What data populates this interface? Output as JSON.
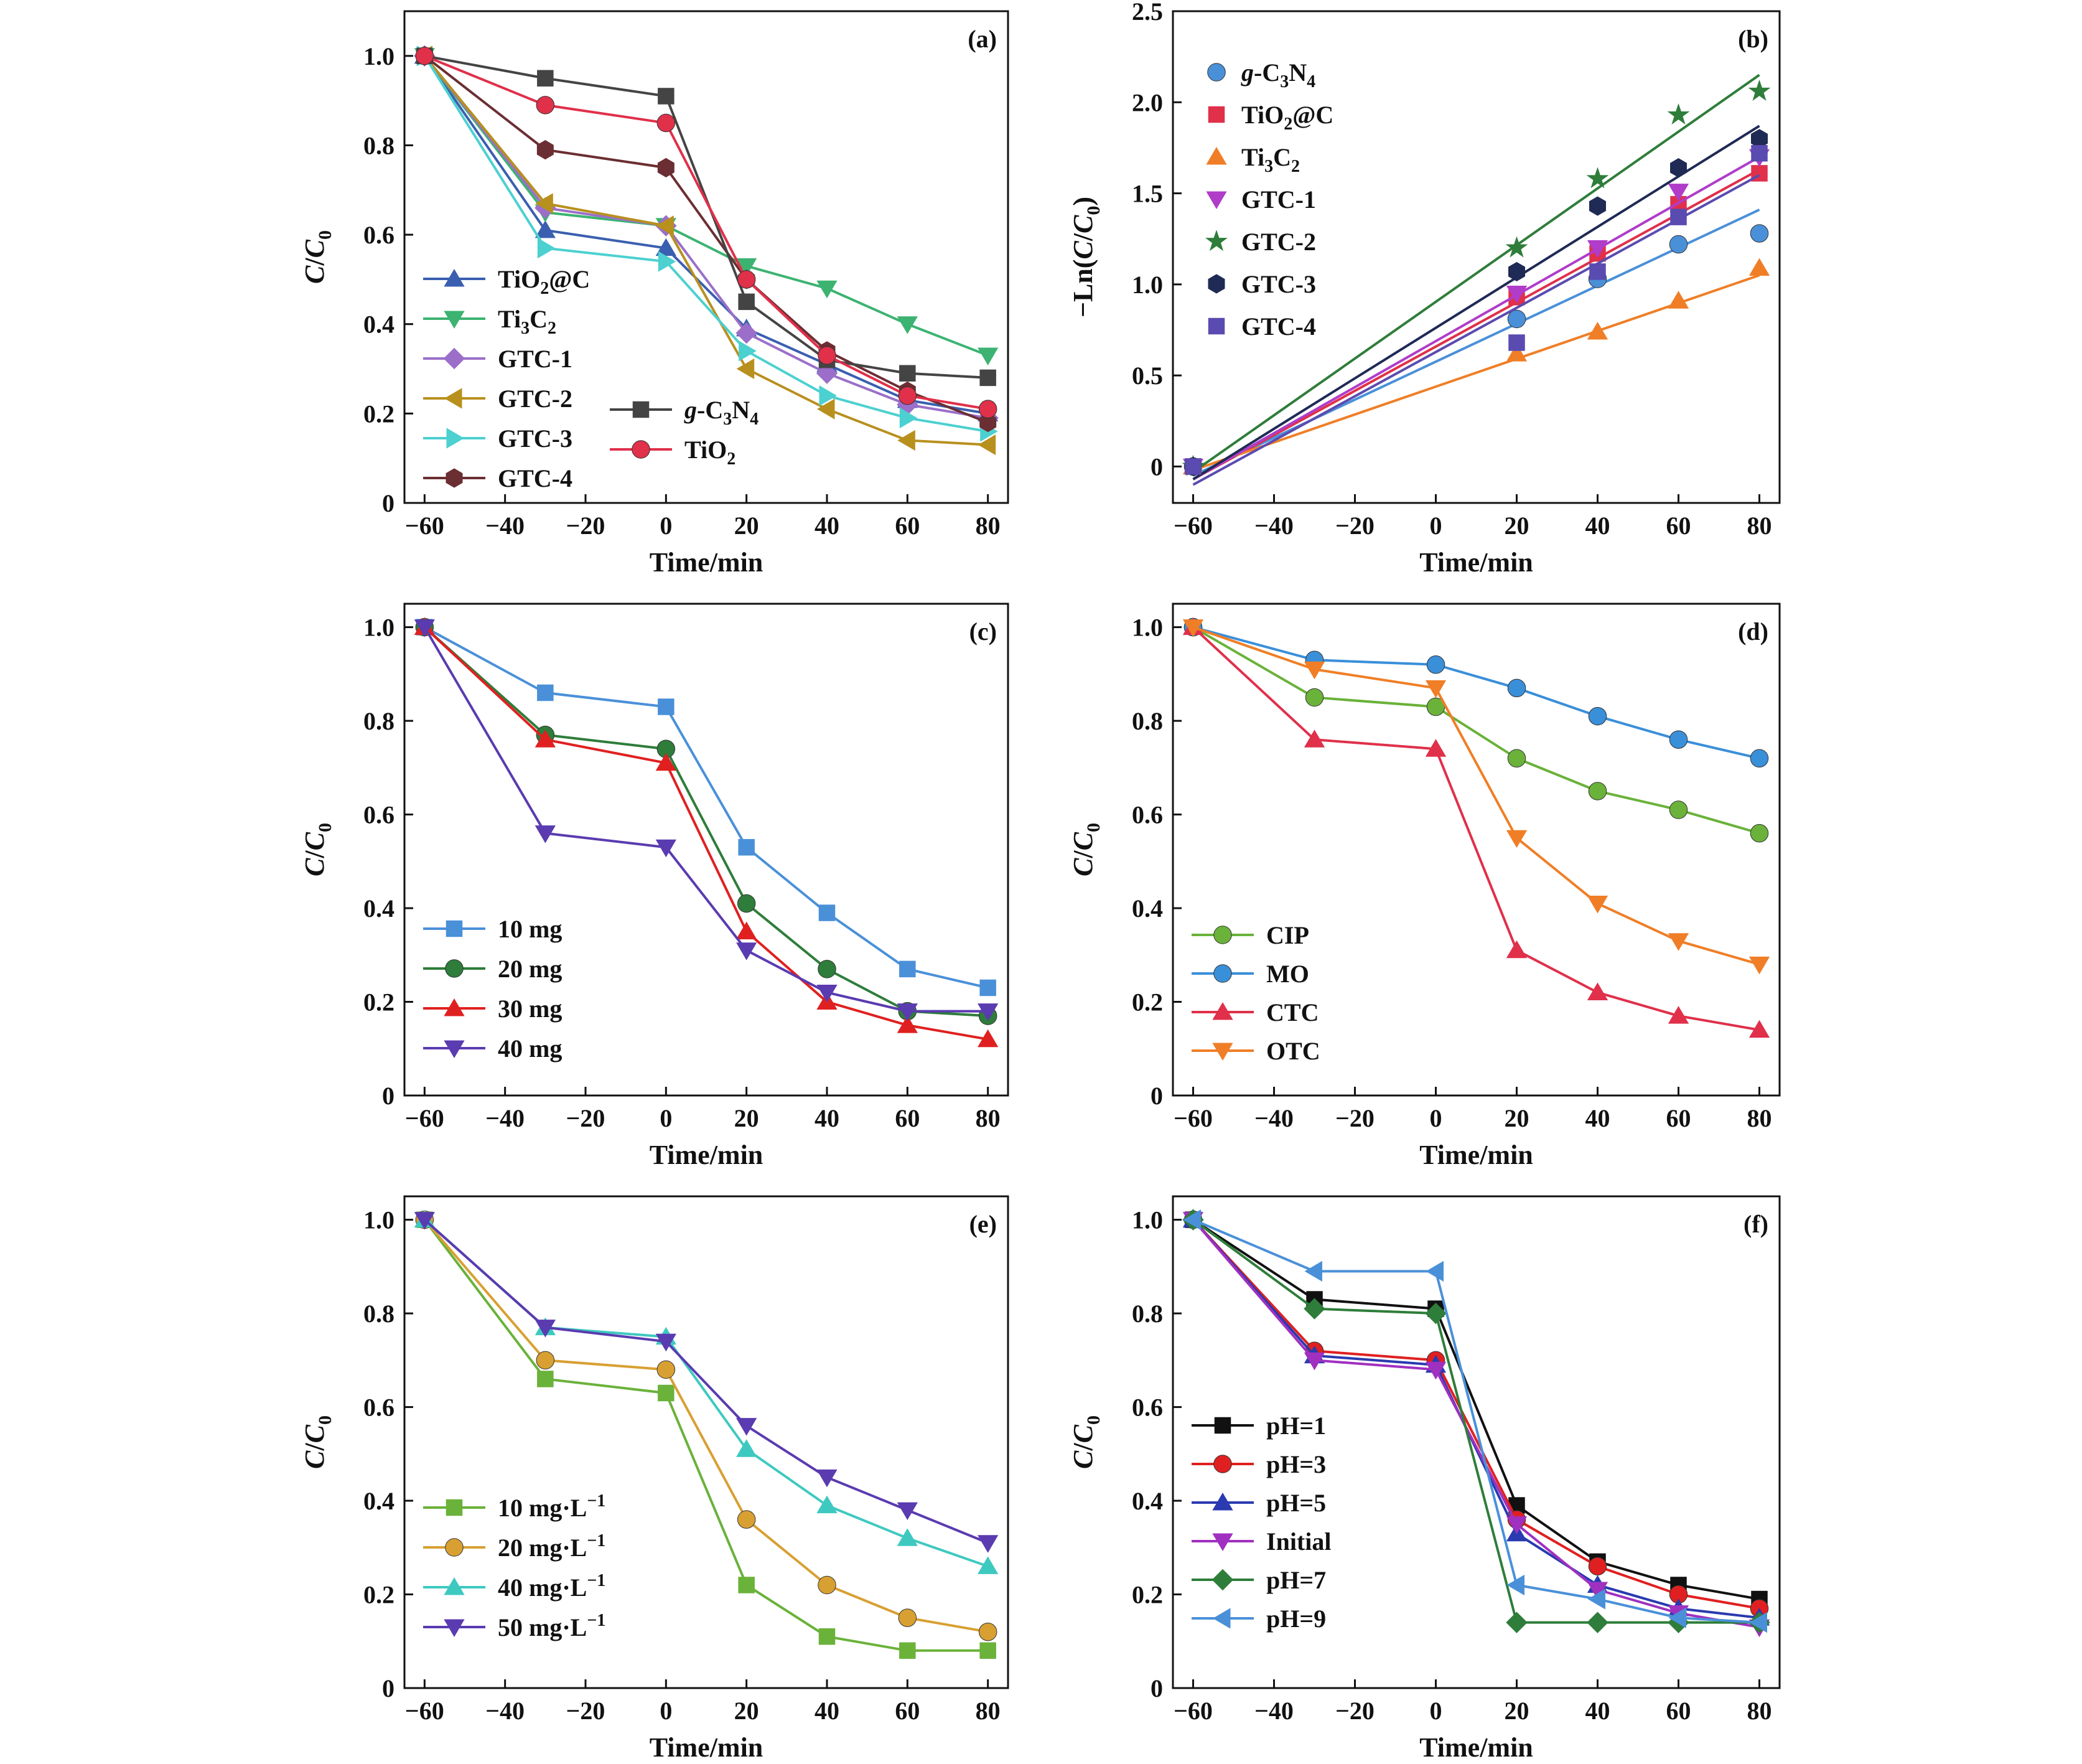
{
  "chart_data": [
    {
      "tag": "(a)",
      "type": "line",
      "xlabel": "Time/min",
      "ylabel": "C/C",
      "ylabel_sub": "0",
      "ylabel_italic": true,
      "xlim": [
        -65,
        85
      ],
      "ylim": [
        0,
        1.1
      ],
      "xticks": [
        -60,
        -40,
        -20,
        0,
        20,
        40,
        60,
        80
      ],
      "xtick_labels": [
        "−60",
        "−40",
        "−20",
        "0",
        "20",
        "40",
        "60",
        "80"
      ],
      "yticks": [
        0,
        0.2,
        0.4,
        0.6,
        0.8,
        1.0
      ],
      "ytick_labels": [
        "0",
        "0.2",
        "0.4",
        "0.6",
        "0.8",
        "1.0"
      ],
      "x": [
        -60,
        -30,
        0,
        20,
        40,
        60,
        80
      ],
      "series": [
        {
          "name": "TiO",
          "sub": "2",
          "rest": "@C",
          "color": "#3a5fb0",
          "marker": "triangle-up",
          "values": [
            1.0,
            0.61,
            0.57,
            0.39,
            0.31,
            0.23,
            0.2
          ]
        },
        {
          "name": "Ti",
          "sub": "3",
          "rest": "C",
          "sub2": "2",
          "color": "#3cb371",
          "marker": "triangle-down",
          "values": [
            1.0,
            0.65,
            0.62,
            0.53,
            0.48,
            0.4,
            0.33
          ]
        },
        {
          "name": "GTC-1",
          "color": "#9b6fc9",
          "marker": "diamond",
          "values": [
            1.0,
            0.66,
            0.62,
            0.38,
            0.29,
            0.22,
            0.19
          ]
        },
        {
          "name": "GTC-2",
          "color": "#b8901e",
          "marker": "triangle-left",
          "values": [
            1.0,
            0.67,
            0.62,
            0.3,
            0.21,
            0.14,
            0.13
          ]
        },
        {
          "name": "GTC-3",
          "color": "#4cd0d0",
          "marker": "triangle-right",
          "values": [
            1.0,
            0.57,
            0.54,
            0.34,
            0.24,
            0.19,
            0.16
          ]
        },
        {
          "name": "GTC-4",
          "color": "#6b2e32",
          "marker": "hexagon",
          "values": [
            1.0,
            0.79,
            0.75,
            0.5,
            0.34,
            0.25,
            0.18
          ]
        },
        {
          "name": "g-C",
          "sub": "3",
          "rest": "N",
          "sub2": "4",
          "italic_prefix": "g",
          "color": "#444444",
          "marker": "square",
          "values": [
            1.0,
            0.95,
            0.91,
            0.45,
            0.32,
            0.29,
            0.28
          ]
        },
        {
          "name": "TiO",
          "sub": "2",
          "color": "#e0304a",
          "marker": "circle",
          "values": [
            1.0,
            0.89,
            0.85,
            0.5,
            0.33,
            0.24,
            0.21
          ]
        }
      ]
    },
    {
      "tag": "(b)",
      "type": "scatter",
      "xlabel": "Time/min",
      "ylabel": "−Ln(C/C",
      "ylabel_sub": "0",
      "ylabel_tail": ")",
      "xlim": [
        -65,
        85
      ],
      "ylim": [
        -0.2,
        2.5
      ],
      "xticks": [
        -60,
        -40,
        -20,
        0,
        20,
        40,
        60,
        80
      ],
      "xtick_labels": [
        "−60",
        "−40",
        "−20",
        "0",
        "20",
        "40",
        "60",
        "80"
      ],
      "yticks": [
        0,
        0.5,
        1.0,
        1.5,
        2.0,
        2.5
      ],
      "ytick_labels": [
        "0",
        "0.5",
        "1.0",
        "1.5",
        "2.0",
        "2.5"
      ],
      "x": [
        -60,
        20,
        40,
        60,
        80
      ],
      "series": [
        {
          "name": "g-C",
          "sub": "3",
          "rest": "N",
          "sub2": "4",
          "color": "#4a90d9",
          "marker": "circle",
          "values": [
            0,
            0.81,
            1.03,
            1.22,
            1.28
          ],
          "fit": [
            [
              -60,
              -0.05
            ],
            [
              80,
              1.41
            ]
          ]
        },
        {
          "name": "TiO",
          "sub": "2",
          "rest": "@C",
          "color": "#e0304a",
          "marker": "square",
          "values": [
            0,
            0.93,
            1.17,
            1.44,
            1.61
          ],
          "fit": [
            [
              -60,
              -0.07
            ],
            [
              80,
              1.63
            ]
          ]
        },
        {
          "name": "Ti",
          "sub": "3",
          "rest": "C",
          "sub2": "2",
          "color": "#f07e26",
          "marker": "triangle-up",
          "values": [
            0,
            0.62,
            0.74,
            0.91,
            1.09
          ],
          "fit": [
            [
              -60,
              -0.02
            ],
            [
              80,
              1.05
            ]
          ]
        },
        {
          "name": "GTC-1",
          "color": "#b03cc9",
          "marker": "triangle-down",
          "values": [
            0,
            0.95,
            1.2,
            1.51,
            1.7
          ],
          "fit": [
            [
              -60,
              -0.07
            ],
            [
              80,
              1.7
            ]
          ]
        },
        {
          "name": "GTC-2",
          "color": "#2e7d3a",
          "marker": "star",
          "values": [
            0,
            1.2,
            1.58,
            1.93,
            2.06
          ],
          "fit": [
            [
              -60,
              -0.03
            ],
            [
              80,
              2.15
            ]
          ]
        },
        {
          "name": "GTC-3",
          "color": "#1f2a55",
          "marker": "hexagon",
          "values": [
            0,
            1.07,
            1.43,
            1.64,
            1.8
          ],
          "fit": [
            [
              -60,
              -0.07
            ],
            [
              80,
              1.87
            ]
          ]
        },
        {
          "name": "GTC-4",
          "color": "#5a4bb0",
          "marker": "square",
          "values": [
            0,
            0.68,
            1.07,
            1.37,
            1.72
          ],
          "fit": [
            [
              -60,
              -0.1
            ],
            [
              80,
              1.6
            ]
          ]
        }
      ]
    },
    {
      "tag": "(c)",
      "type": "line",
      "xlabel": "Time/min",
      "ylabel": "C/C",
      "ylabel_sub": "0",
      "xlim": [
        -65,
        85
      ],
      "ylim": [
        0,
        1.05
      ],
      "xticks": [
        -60,
        -40,
        -20,
        0,
        20,
        40,
        60,
        80
      ],
      "xtick_labels": [
        "−60",
        "−40",
        "−20",
        "0",
        "20",
        "40",
        "60",
        "80"
      ],
      "yticks": [
        0,
        0.2,
        0.4,
        0.6,
        0.8,
        1.0
      ],
      "ytick_labels": [
        "0",
        "0.2",
        "0.4",
        "0.6",
        "0.8",
        "1.0"
      ],
      "x": [
        -60,
        -30,
        0,
        20,
        40,
        60,
        80
      ],
      "series": [
        {
          "name": "10 mg",
          "color": "#4a90d9",
          "marker": "square",
          "values": [
            1.0,
            0.86,
            0.83,
            0.53,
            0.39,
            0.27,
            0.23
          ]
        },
        {
          "name": "20 mg",
          "color": "#2e7d3a",
          "marker": "circle",
          "values": [
            1.0,
            0.77,
            0.74,
            0.41,
            0.27,
            0.18,
            0.17
          ]
        },
        {
          "name": "30 mg",
          "color": "#e02020",
          "marker": "triangle-up",
          "values": [
            1.0,
            0.76,
            0.71,
            0.35,
            0.2,
            0.15,
            0.12
          ]
        },
        {
          "name": "40 mg",
          "color": "#5a3bb0",
          "marker": "triangle-down",
          "values": [
            1.0,
            0.56,
            0.53,
            0.31,
            0.22,
            0.18,
            0.18
          ]
        }
      ]
    },
    {
      "tag": "(d)",
      "type": "line",
      "xlabel": "Time/min",
      "ylabel": "C/C",
      "ylabel_sub": "0",
      "xlim": [
        -65,
        85
      ],
      "ylim": [
        0,
        1.05
      ],
      "xticks": [
        -60,
        -40,
        -20,
        0,
        20,
        40,
        60,
        80
      ],
      "xtick_labels": [
        "−60",
        "−40",
        "−20",
        "0",
        "20",
        "40",
        "60",
        "80"
      ],
      "yticks": [
        0,
        0.2,
        0.4,
        0.6,
        0.8,
        1.0
      ],
      "ytick_labels": [
        "0",
        "0.2",
        "0.4",
        "0.6",
        "0.8",
        "1.0"
      ],
      "x": [
        -60,
        -30,
        0,
        20,
        40,
        60,
        80
      ],
      "series": [
        {
          "name": "CIP",
          "color": "#6ab23a",
          "marker": "circle",
          "values": [
            1.0,
            0.85,
            0.83,
            0.72,
            0.65,
            0.61,
            0.56
          ]
        },
        {
          "name": "MO",
          "color": "#3a8fd9",
          "marker": "circle",
          "values": [
            1.0,
            0.93,
            0.92,
            0.87,
            0.81,
            0.76,
            0.72
          ]
        },
        {
          "name": "CTC",
          "color": "#e0304a",
          "marker": "triangle-up",
          "values": [
            1.0,
            0.76,
            0.74,
            0.31,
            0.22,
            0.17,
            0.14
          ]
        },
        {
          "name": "OTC",
          "color": "#f07e26",
          "marker": "triangle-down",
          "values": [
            1.0,
            0.91,
            0.87,
            0.55,
            0.41,
            0.33,
            0.28
          ]
        }
      ]
    },
    {
      "tag": "(e)",
      "type": "line",
      "xlabel": "Time/min",
      "ylabel": "C/C",
      "ylabel_sub": "0",
      "xlim": [
        -65,
        85
      ],
      "ylim": [
        0,
        1.05
      ],
      "xticks": [
        -60,
        -40,
        -20,
        0,
        20,
        40,
        60,
        80
      ],
      "xtick_labels": [
        "−60",
        "−40",
        "−20",
        "0",
        "20",
        "40",
        "60",
        "80"
      ],
      "yticks": [
        0,
        0.2,
        0.4,
        0.6,
        0.8,
        1.0
      ],
      "ytick_labels": [
        "0",
        "0.2",
        "0.4",
        "0.6",
        "0.8",
        "1.0"
      ],
      "x": [
        -60,
        -30,
        0,
        20,
        40,
        60,
        80
      ],
      "series": [
        {
          "name": "10 mg·L",
          "sup": "−1",
          "color": "#6ab23a",
          "marker": "square",
          "values": [
            1.0,
            0.66,
            0.63,
            0.22,
            0.11,
            0.08,
            0.08
          ]
        },
        {
          "name": "20 mg·L",
          "sup": "−1",
          "color": "#d8a032",
          "marker": "circle",
          "values": [
            1.0,
            0.7,
            0.68,
            0.36,
            0.22,
            0.15,
            0.12
          ]
        },
        {
          "name": "40 mg·L",
          "sup": "−1",
          "color": "#3ec9c0",
          "marker": "triangle-up",
          "values": [
            1.0,
            0.77,
            0.75,
            0.51,
            0.39,
            0.32,
            0.26
          ]
        },
        {
          "name": "50 mg·L",
          "sup": "−1",
          "color": "#5a3bb0",
          "marker": "triangle-down",
          "values": [
            1.0,
            0.77,
            0.74,
            0.56,
            0.45,
            0.38,
            0.31
          ]
        }
      ]
    },
    {
      "tag": "(f)",
      "type": "line",
      "xlabel": "Time/min",
      "ylabel": "C/C",
      "ylabel_sub": "0",
      "xlim": [
        -65,
        85
      ],
      "ylim": [
        0,
        1.05
      ],
      "xticks": [
        -60,
        -40,
        -20,
        0,
        20,
        40,
        60,
        80
      ],
      "xtick_labels": [
        "−60",
        "−40",
        "−20",
        "0",
        "20",
        "40",
        "60",
        "80"
      ],
      "yticks": [
        0,
        0.2,
        0.4,
        0.6,
        0.8,
        1.0
      ],
      "ytick_labels": [
        "0",
        "0.2",
        "0.4",
        "0.6",
        "0.8",
        "1.0"
      ],
      "x": [
        -60,
        -30,
        0,
        20,
        40,
        60,
        80
      ],
      "series": [
        {
          "name": "pH=1",
          "color": "#111111",
          "marker": "square",
          "values": [
            1.0,
            0.83,
            0.81,
            0.39,
            0.27,
            0.22,
            0.19
          ]
        },
        {
          "name": "pH=3",
          "color": "#e02020",
          "marker": "circle",
          "values": [
            1.0,
            0.72,
            0.7,
            0.36,
            0.26,
            0.2,
            0.17
          ]
        },
        {
          "name": "pH=5",
          "color": "#2a3ab0",
          "marker": "triangle-up",
          "values": [
            1.0,
            0.71,
            0.69,
            0.33,
            0.22,
            0.17,
            0.15
          ]
        },
        {
          "name": "Initial",
          "color": "#a030c0",
          "marker": "triangle-down",
          "values": [
            1.0,
            0.7,
            0.68,
            0.35,
            0.21,
            0.16,
            0.13
          ]
        },
        {
          "name": "pH=7",
          "color": "#2e7d3a",
          "marker": "diamond",
          "values": [
            1.0,
            0.81,
            0.8,
            0.14,
            0.14,
            0.14,
            0.14
          ]
        },
        {
          "name": "pH=9",
          "color": "#4a90d9",
          "marker": "triangle-left",
          "values": [
            1.0,
            0.89,
            0.89,
            0.22,
            0.19,
            0.15,
            0.14
          ]
        }
      ]
    }
  ]
}
